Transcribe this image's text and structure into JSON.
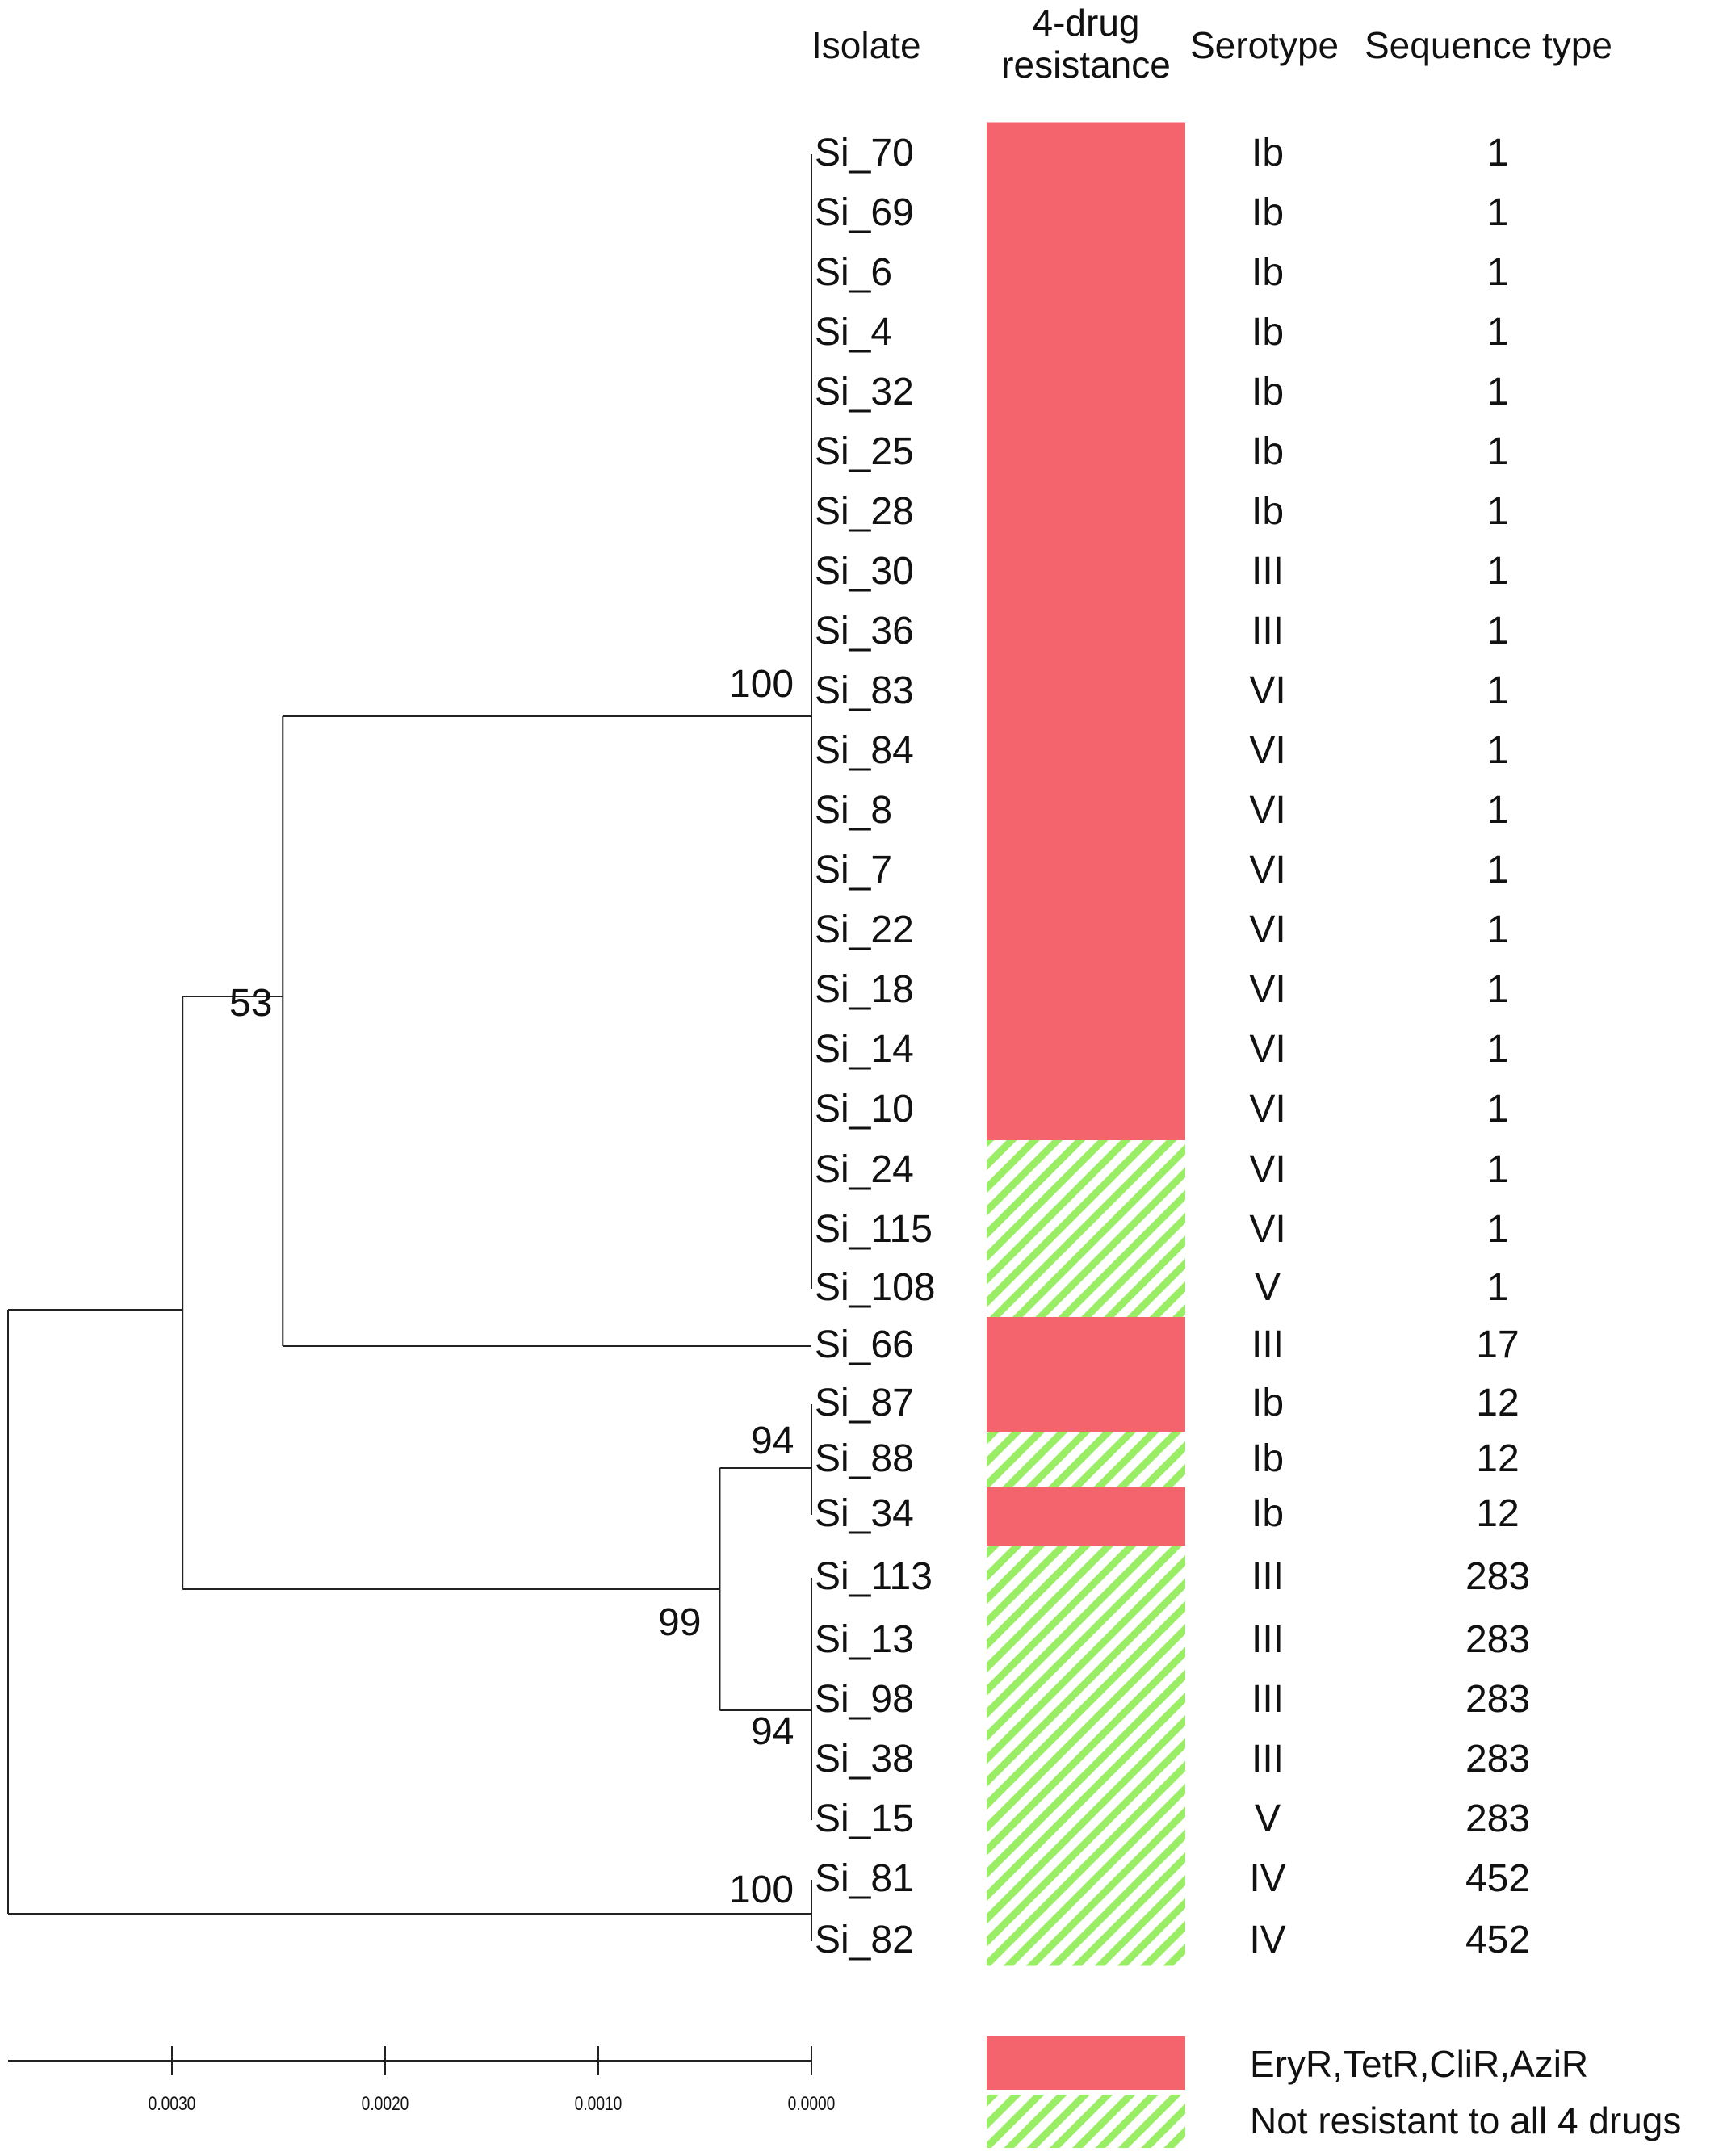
{
  "headers": {
    "isolate": "Isolate",
    "resistance_line1": "4-drug",
    "resistance_line2": "resistance",
    "serotype": "Serotype",
    "sequence_type": "Sequence type"
  },
  "isolates": [
    {
      "name": "Si_70",
      "resistance": "R",
      "serotype": "Ib",
      "st": "1"
    },
    {
      "name": "Si_69",
      "resistance": "R",
      "serotype": "Ib",
      "st": "1"
    },
    {
      "name": "Si_6",
      "resistance": "R",
      "serotype": "Ib",
      "st": "1"
    },
    {
      "name": "Si_4",
      "resistance": "R",
      "serotype": "Ib",
      "st": "1"
    },
    {
      "name": "Si_32",
      "resistance": "R",
      "serotype": "Ib",
      "st": "1"
    },
    {
      "name": "Si_25",
      "resistance": "R",
      "serotype": "Ib",
      "st": "1"
    },
    {
      "name": "Si_28",
      "resistance": "R",
      "serotype": "Ib",
      "st": "1"
    },
    {
      "name": "Si_30",
      "resistance": "R",
      "serotype": "III",
      "st": "1"
    },
    {
      "name": "Si_36",
      "resistance": "R",
      "serotype": "III",
      "st": "1"
    },
    {
      "name": "Si_83",
      "resistance": "R",
      "serotype": "VI",
      "st": "1"
    },
    {
      "name": "Si_84",
      "resistance": "R",
      "serotype": "VI",
      "st": "1"
    },
    {
      "name": "Si_8",
      "resistance": "R",
      "serotype": "VI",
      "st": "1"
    },
    {
      "name": "Si_7",
      "resistance": "R",
      "serotype": "VI",
      "st": "1"
    },
    {
      "name": "Si_22",
      "resistance": "R",
      "serotype": "VI",
      "st": "1"
    },
    {
      "name": "Si_18",
      "resistance": "R",
      "serotype": "VI",
      "st": "1"
    },
    {
      "name": "Si_14",
      "resistance": "R",
      "serotype": "VI",
      "st": "1"
    },
    {
      "name": "Si_10",
      "resistance": "R",
      "serotype": "VI",
      "st": "1"
    },
    {
      "name": "Si_24",
      "resistance": "N",
      "serotype": "VI",
      "st": "1"
    },
    {
      "name": "Si_115",
      "resistance": "N",
      "serotype": "VI",
      "st": "1"
    },
    {
      "name": "Si_108",
      "resistance": "N",
      "serotype": "V",
      "st": "1"
    },
    {
      "name": "Si_66",
      "resistance": "R",
      "serotype": "III",
      "st": "17"
    },
    {
      "name": "Si_87",
      "resistance": "R",
      "serotype": "Ib",
      "st": "12"
    },
    {
      "name": "Si_88",
      "resistance": "N",
      "serotype": "Ib",
      "st": "12"
    },
    {
      "name": "Si_34",
      "resistance": "R",
      "serotype": "Ib",
      "st": "12"
    },
    {
      "name": "Si_113",
      "resistance": "N",
      "serotype": "III",
      "st": "283"
    },
    {
      "name": "Si_13",
      "resistance": "N",
      "serotype": "III",
      "st": "283"
    },
    {
      "name": "Si_98",
      "resistance": "N",
      "serotype": "III",
      "st": "283"
    },
    {
      "name": "Si_38",
      "resistance": "N",
      "serotype": "III",
      "st": "283"
    },
    {
      "name": "Si_15",
      "resistance": "N",
      "serotype": "V",
      "st": "283"
    },
    {
      "name": "Si_81",
      "resistance": "N",
      "serotype": "IV",
      "st": "452"
    },
    {
      "name": "Si_82",
      "resistance": "N",
      "serotype": "IV",
      "st": "452"
    }
  ],
  "tree": {
    "nodes": [
      {
        "id": "root",
        "x": 0.00375
      },
      {
        "id": "n53",
        "x": 0.00295,
        "bootstrap": "53"
      },
      {
        "id": "nST1parent",
        "x": 0.00248
      },
      {
        "id": "nST1",
        "x": 0.0,
        "bootstrap": "100"
      },
      {
        "id": "n99",
        "x": 0.00043,
        "bootstrap": "99"
      },
      {
        "id": "n94a",
        "x": 0.0,
        "bootstrap": "94"
      },
      {
        "id": "n94b",
        "x": 0.0,
        "bootstrap": "94"
      },
      {
        "id": "nST452",
        "x": 0.0,
        "bootstrap": "100"
      }
    ],
    "scale_ticks": [
      "0.0030",
      "0.0020",
      "0.0010",
      "0.0000"
    ],
    "scale_values": [
      0.003,
      0.002,
      0.001,
      0.0
    ]
  },
  "legend": {
    "resistant_label": "EryR,TetR,CliR,AziR",
    "not_resistant_label": "Not resistant to all 4 drugs"
  },
  "colors": {
    "resistant": "#f4646c",
    "stripe": "#99ee66",
    "line": "#222222"
  }
}
